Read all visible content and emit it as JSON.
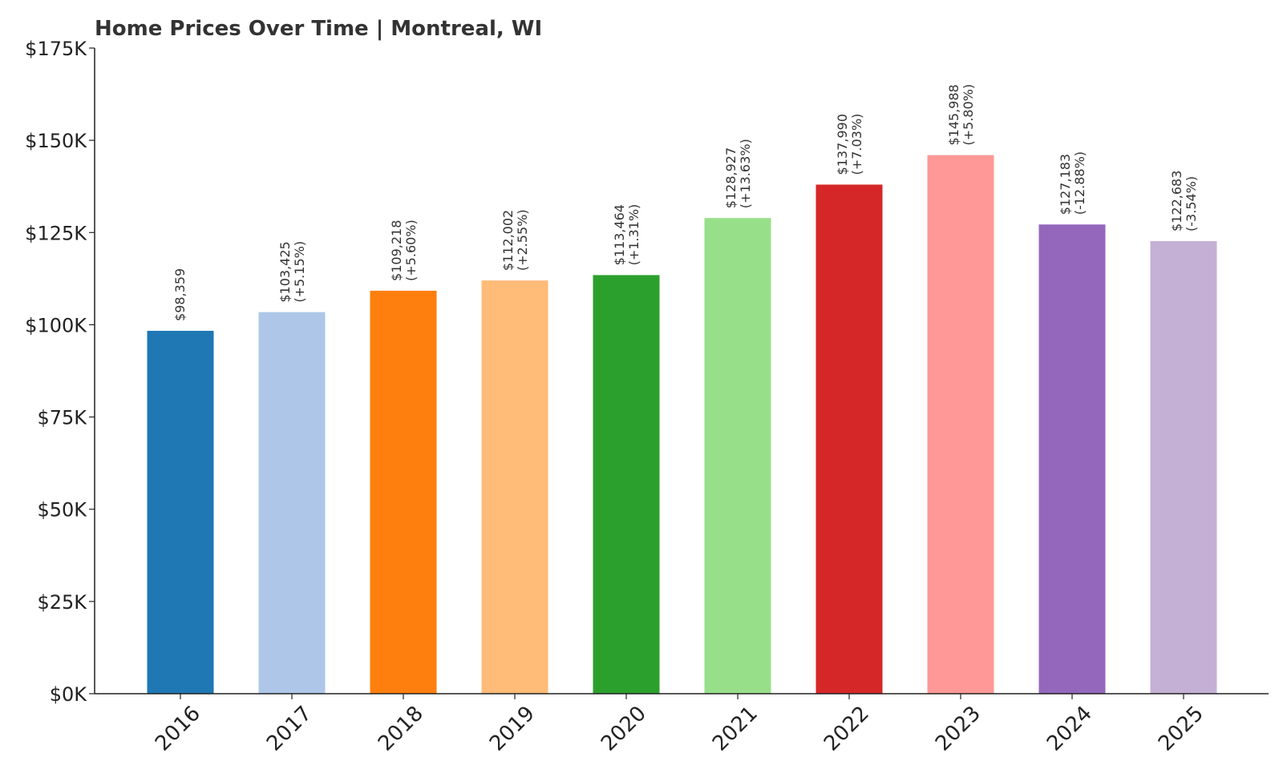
{
  "chart_data": {
    "type": "bar",
    "title": "Home Prices Over Time | Montreal, WI",
    "xlabel": "",
    "ylabel": "",
    "ylim": [
      0,
      175000
    ],
    "yticks": [
      0,
      25000,
      50000,
      75000,
      100000,
      125000,
      150000,
      175000
    ],
    "ytick_labels": [
      "$0K",
      "$25K",
      "$50K",
      "$75K",
      "$100K",
      "$125K",
      "$150K",
      "$175K"
    ],
    "grid": false,
    "legend": "none",
    "categories": [
      "2016",
      "2017",
      "2018",
      "2019",
      "2020",
      "2021",
      "2022",
      "2023",
      "2024",
      "2025"
    ],
    "values": [
      98359,
      103425,
      109218,
      112002,
      113464,
      128927,
      137990,
      145988,
      127183,
      122683
    ],
    "value_labels": [
      "$98,359",
      "$103,425",
      "$109,218",
      "$112,002",
      "$113,464",
      "$128,927",
      "$137,990",
      "$145,988",
      "$127,183",
      "$122,683"
    ],
    "change_labels": [
      "",
      "(+5.15%)",
      "(+5.60%)",
      "(+2.55%)",
      "(+1.31%)",
      "(+13.63%)",
      "(+7.03%)",
      "(+5.80%)",
      "(-12.88%)",
      "(-3.54%)"
    ],
    "colors": [
      "#1f77b4",
      "#aec7e8",
      "#ff7f0e",
      "#ffbb78",
      "#2ca02c",
      "#98df8a",
      "#d62728",
      "#ff9896",
      "#9467bd",
      "#c5b0d5"
    ]
  }
}
